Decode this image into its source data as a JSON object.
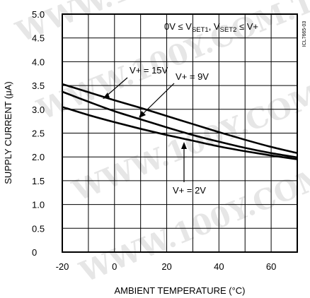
{
  "chart_data": {
    "type": "line",
    "xlabel": "AMBIENT TEMPERATURE (°C)",
    "ylabel": "SUPPLY CURRENT (μA)",
    "xlim": [
      -20,
      70
    ],
    "ylim": [
      0,
      5.0
    ],
    "x_ticks": [
      -20,
      0,
      20,
      40,
      60
    ],
    "x_tick_labels": [
      "-20",
      "0",
      "20",
      "40",
      "60"
    ],
    "y_ticks": [
      0,
      0.5,
      1.0,
      1.5,
      2.0,
      2.5,
      3.0,
      3.5,
      4.0,
      4.5,
      5.0
    ],
    "y_tick_labels": [
      "0",
      "0.5",
      "1.0",
      "1.5",
      "2.0",
      "2.5",
      "3.0",
      "3.5",
      "4.0",
      "4.5",
      "5.0"
    ],
    "grid": true,
    "series": [
      {
        "name": "V+ = 15V",
        "x": [
          -20,
          -10,
          0,
          10,
          20,
          30,
          40,
          50,
          60,
          70
        ],
        "y": [
          3.53,
          3.36,
          3.19,
          3.03,
          2.86,
          2.69,
          2.52,
          2.36,
          2.21,
          2.08
        ]
      },
      {
        "name": "V+ = 9V",
        "x": [
          -20,
          -10,
          0,
          10,
          20,
          30,
          40,
          50,
          60,
          70
        ],
        "y": [
          3.37,
          3.16,
          2.96,
          2.79,
          2.62,
          2.46,
          2.32,
          2.19,
          2.08,
          1.99
        ]
      },
      {
        "name": "V+ = 2V",
        "x": [
          -20,
          -10,
          0,
          10,
          20,
          30,
          40,
          50,
          60,
          70
        ],
        "y": [
          3.05,
          2.88,
          2.73,
          2.59,
          2.46,
          2.34,
          2.22,
          2.12,
          2.03,
          1.95
        ]
      }
    ],
    "condition_text": "0V ≤ V",
    "condition_sub1": "SET1",
    "condition_mid": ", V",
    "condition_sub2": "SET2",
    "condition_end": " ≤ V+",
    "side_code": "ICL7665-03",
    "labels": {
      "v15": "V+ = 15V",
      "v9": "V+ = 9V",
      "v2": "V+ = 2V"
    }
  },
  "watermark": "WWW.100Y.COM.TW"
}
